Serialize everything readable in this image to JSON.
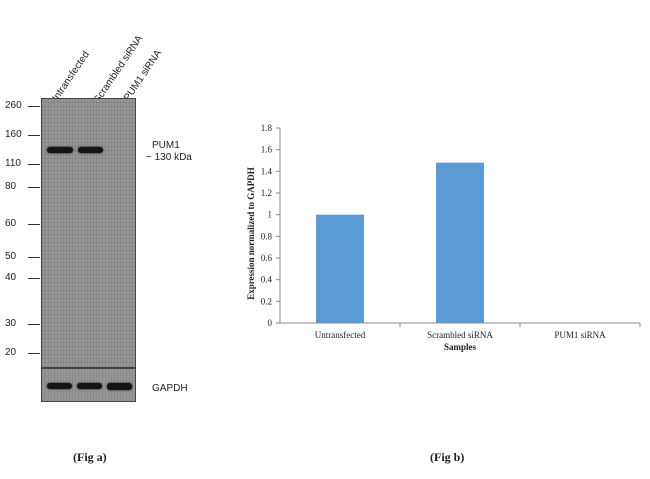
{
  "fig_a": {
    "lane_labels": [
      "Untransfected",
      "Scrambled siRNA",
      "PUM1 siRNA"
    ],
    "mw_markers": [
      "260",
      "160",
      "110",
      "80",
      "60",
      "50",
      "40",
      "30",
      "20"
    ],
    "target_label": "PUM1",
    "target_size": "~ 130 kDa",
    "loading_control": "GAPDH",
    "caption": "(Fig a)"
  },
  "fig_b": {
    "caption": "(Fig b)"
  },
  "chart_data": {
    "type": "bar",
    "categories": [
      "Untransfected",
      "Scrambled siRNA",
      "PUM1 siRNA"
    ],
    "values": [
      1.0,
      1.48,
      0.0
    ],
    "xlabel": "Samples",
    "ylabel": "Expression  normalized to GAPDH",
    "ylim": [
      0,
      1.8
    ],
    "yticks": [
      "0",
      "0.2",
      "0.4",
      "0.6",
      "0.8",
      "1",
      "1.2",
      "1.4",
      "1.6",
      "1.8"
    ],
    "grid": false,
    "bar_color": "#5b9bd5"
  }
}
